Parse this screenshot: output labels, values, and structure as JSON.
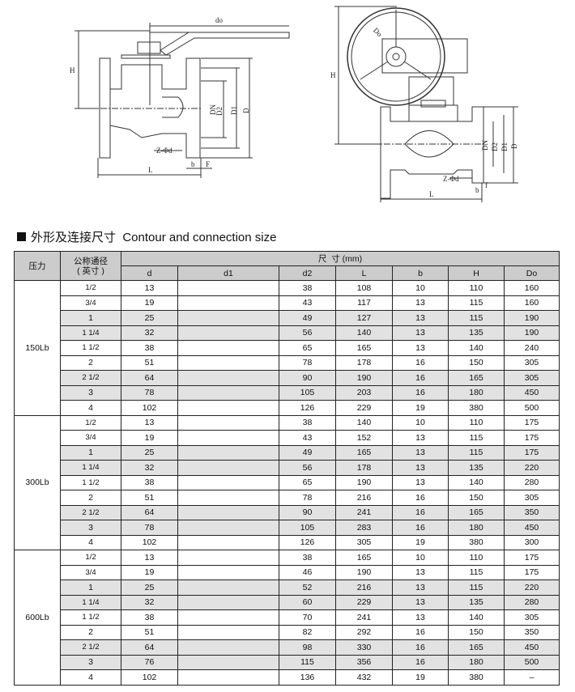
{
  "drawing_left": {
    "labels": {
      "do": "do",
      "H": "H",
      "DN": "DN",
      "D2": "D2",
      "D1": "D1",
      "D": "D",
      "zd": "Z-Φd",
      "b": "b",
      "F": "F",
      "L": "L"
    }
  },
  "drawing_right": {
    "labels": {
      "Do": "Do",
      "H": "H",
      "DN": "DN",
      "D2": "D2",
      "D1": "D1",
      "D": "D",
      "zd": "Z-Φd",
      "b": "b",
      "f": "f",
      "L": "L"
    }
  },
  "section_title": "外形及连接尺寸  Contour and connection size",
  "table": {
    "header_pressure": "压力",
    "header_size": "公称通径\n( 英寸 )",
    "header_dims": "尺  寸 (mm)",
    "columns": [
      "d",
      "d1",
      "d2",
      "L",
      "b",
      "H",
      "Do"
    ],
    "groups": [
      {
        "pressure": "150Lb",
        "rows": [
          [
            "1/2",
            "13",
            "",
            "38",
            "108",
            "10",
            "110",
            "160"
          ],
          [
            "3/4",
            "19",
            "",
            "43",
            "117",
            "13",
            "115",
            "160"
          ],
          [
            "1",
            "25",
            "",
            "49",
            "127",
            "13",
            "115",
            "190"
          ],
          [
            "1 1/4",
            "32",
            "",
            "56",
            "140",
            "13",
            "135",
            "190"
          ],
          [
            "1 1/2",
            "38",
            "",
            "65",
            "165",
            "13",
            "140",
            "240"
          ],
          [
            "2",
            "51",
            "",
            "78",
            "178",
            "16",
            "150",
            "305"
          ],
          [
            "2 1/2",
            "64",
            "",
            "90",
            "190",
            "16",
            "165",
            "305"
          ],
          [
            "3",
            "78",
            "",
            "105",
            "203",
            "16",
            "180",
            "450"
          ],
          [
            "4",
            "102",
            "",
            "126",
            "229",
            "19",
            "380",
            "500"
          ]
        ]
      },
      {
        "pressure": "300Lb",
        "rows": [
          [
            "1/2",
            "13",
            "",
            "38",
            "140",
            "10",
            "110",
            "175"
          ],
          [
            "3/4",
            "19",
            "",
            "43",
            "152",
            "13",
            "115",
            "175"
          ],
          [
            "1",
            "25",
            "",
            "49",
            "165",
            "13",
            "115",
            "175"
          ],
          [
            "1 1/4",
            "32",
            "",
            "56",
            "178",
            "13",
            "135",
            "220"
          ],
          [
            "1 1/2",
            "38",
            "",
            "65",
            "190",
            "13",
            "140",
            "280"
          ],
          [
            "2",
            "51",
            "",
            "78",
            "216",
            "16",
            "150",
            "305"
          ],
          [
            "2 1/2",
            "64",
            "",
            "90",
            "241",
            "16",
            "165",
            "350"
          ],
          [
            "3",
            "78",
            "",
            "105",
            "283",
            "16",
            "180",
            "450"
          ],
          [
            "4",
            "102",
            "",
            "126",
            "305",
            "19",
            "380",
            "300"
          ]
        ]
      },
      {
        "pressure": "600Lb",
        "rows": [
          [
            "1/2",
            "13",
            "",
            "38",
            "165",
            "10",
            "110",
            "175"
          ],
          [
            "3/4",
            "19",
            "",
            "46",
            "190",
            "13",
            "115",
            "175"
          ],
          [
            "1",
            "25",
            "",
            "52",
            "216",
            "13",
            "115",
            "220"
          ],
          [
            "1 1/4",
            "32",
            "",
            "60",
            "229",
            "13",
            "135",
            "280"
          ],
          [
            "1 1/2",
            "38",
            "",
            "70",
            "241",
            "13",
            "140",
            "305"
          ],
          [
            "2",
            "51",
            "",
            "82",
            "292",
            "16",
            "150",
            "350"
          ],
          [
            "2 1/2",
            "64",
            "",
            "98",
            "330",
            "16",
            "165",
            "450"
          ],
          [
            "3",
            "76",
            "",
            "115",
            "356",
            "16",
            "180",
            "500"
          ],
          [
            "4",
            "102",
            "",
            "136",
            "432",
            "19",
            "380",
            "–"
          ]
        ]
      }
    ],
    "shaded_color": "#e2e2e2",
    "header_color": "#cccccc"
  }
}
